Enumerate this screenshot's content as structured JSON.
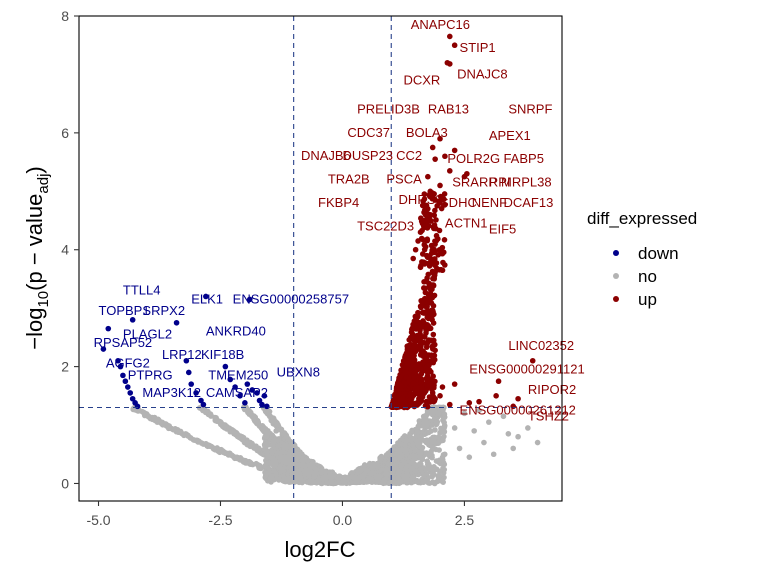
{
  "chart_data": {
    "type": "scatter",
    "xlabel": "log2FC",
    "ylabel_main": "−log",
    "ylabel_sub10": "10",
    "ylabel_mid": "(p − value",
    "ylabel_subadj": "adj",
    "ylabel_close": ")",
    "xlim": [
      -5.4,
      4.5
    ],
    "ylim": [
      -0.3,
      8.0
    ],
    "x_ticks": [
      -5.0,
      -2.5,
      0.0,
      2.5
    ],
    "x_tick_labels": [
      "-5.0",
      "-2.5",
      "0.0",
      "2.5"
    ],
    "y_ticks": [
      0,
      2,
      4,
      6,
      8
    ],
    "y_tick_labels": [
      "0",
      "2",
      "4",
      "6",
      "8"
    ],
    "vlines": [
      -1,
      1
    ],
    "hline": 1.3,
    "grid": false,
    "legend": {
      "title": "diff_expressed",
      "position": "right",
      "entries": [
        {
          "name": "down",
          "color": "#00008b"
        },
        {
          "name": "no",
          "color": "#b3b3b3"
        },
        {
          "name": "up",
          "color": "#8b0000"
        }
      ]
    },
    "colors": {
      "down": "#00008b",
      "no": "#b3b3b3",
      "up": "#8b0000",
      "threshold": "#27408b"
    },
    "points": {
      "up": [
        [
          2.2,
          7.65
        ],
        [
          2.3,
          7.5
        ],
        [
          2.15,
          7.2
        ],
        [
          2.2,
          7.18
        ],
        [
          2.0,
          5.9
        ],
        [
          2.3,
          5.7
        ],
        [
          1.85,
          5.75
        ],
        [
          2.1,
          5.6
        ],
        [
          1.9,
          5.55
        ],
        [
          2.2,
          5.35
        ],
        [
          2.55,
          5.3
        ],
        [
          2.5,
          5.25
        ],
        [
          1.75,
          5.25
        ],
        [
          2.0,
          5.1
        ],
        [
          1.8,
          5.0
        ],
        [
          1.8,
          4.95
        ],
        [
          1.9,
          4.85
        ],
        [
          1.75,
          4.7
        ],
        [
          2.0,
          4.8
        ],
        [
          1.7,
          4.6
        ],
        [
          1.65,
          4.5
        ],
        [
          1.7,
          4.4
        ],
        [
          1.6,
          4.3
        ],
        [
          1.55,
          4.15
        ],
        [
          1.5,
          4.0
        ],
        [
          1.45,
          3.85
        ],
        [
          1.6,
          3.7
        ],
        [
          3.9,
          2.1
        ],
        [
          3.2,
          1.75
        ],
        [
          2.3,
          1.7
        ],
        [
          3.6,
          1.45
        ],
        [
          3.15,
          1.5
        ],
        [
          2.2,
          1.35
        ],
        [
          3.5,
          1.32
        ],
        [
          2.8,
          1.4
        ],
        [
          2.6,
          1.38
        ],
        [
          1.9,
          1.45
        ],
        [
          2.0,
          1.5
        ],
        [
          1.85,
          1.55
        ],
        [
          1.7,
          1.6
        ],
        [
          2.05,
          1.65
        ]
      ],
      "down": [
        [
          -4.8,
          2.65
        ],
        [
          -4.3,
          2.8
        ],
        [
          -3.4,
          2.75
        ],
        [
          -2.8,
          3.2
        ],
        [
          -1.9,
          3.15
        ],
        [
          -4.9,
          2.3
        ],
        [
          -4.6,
          2.1
        ],
        [
          -4.55,
          2.0
        ],
        [
          -4.5,
          1.85
        ],
        [
          -4.45,
          1.75
        ],
        [
          -4.4,
          1.65
        ],
        [
          -4.35,
          1.55
        ],
        [
          -4.3,
          1.45
        ],
        [
          -4.25,
          1.38
        ],
        [
          -4.2,
          1.32
        ],
        [
          -3.2,
          2.1
        ],
        [
          -3.15,
          1.9
        ],
        [
          -3.1,
          1.7
        ],
        [
          -3.0,
          1.55
        ],
        [
          -2.9,
          1.42
        ],
        [
          -2.85,
          1.35
        ],
        [
          -2.4,
          2.0
        ],
        [
          -2.3,
          1.78
        ],
        [
          -2.2,
          1.65
        ],
        [
          -2.1,
          1.5
        ],
        [
          -2.0,
          1.38
        ],
        [
          -1.95,
          1.7
        ],
        [
          -1.85,
          1.6
        ],
        [
          -1.75,
          1.55
        ],
        [
          -1.7,
          1.42
        ],
        [
          -1.65,
          1.35
        ],
        [
          -1.6,
          1.5
        ],
        [
          -1.55,
          1.32
        ]
      ],
      "no_extra": [
        [
          2.5,
          1.2
        ],
        [
          3.0,
          1.05
        ],
        [
          2.7,
          0.9
        ],
        [
          3.4,
          0.85
        ],
        [
          2.9,
          0.7
        ],
        [
          3.6,
          0.8
        ],
        [
          2.4,
          0.6
        ],
        [
          3.1,
          0.5
        ],
        [
          2.3,
          0.95
        ],
        [
          3.3,
          1.15
        ],
        [
          3.8,
          0.95
        ],
        [
          3.5,
          0.6
        ],
        [
          2.6,
          0.45
        ],
        [
          4.0,
          0.7
        ],
        [
          2.8,
          1.25
        ]
      ]
    },
    "annotations": [
      {
        "text": "ANAPC16",
        "x": 1.4,
        "y": 7.85,
        "s": "up"
      },
      {
        "text": "STIP1",
        "x": 2.4,
        "y": 7.45,
        "s": "up"
      },
      {
        "text": "DCXR",
        "x": 1.25,
        "y": 6.9,
        "s": "up"
      },
      {
        "text": "DNAJC8",
        "x": 2.35,
        "y": 7.0,
        "s": "up"
      },
      {
        "text": "PRELID3B",
        "x": 0.3,
        "y": 6.4,
        "s": "up"
      },
      {
        "text": "RAB13",
        "x": 1.75,
        "y": 6.4,
        "s": "up"
      },
      {
        "text": "SNRPF",
        "x": 3.4,
        "y": 6.4,
        "s": "up"
      },
      {
        "text": "CDC37",
        "x": 0.1,
        "y": 6.0,
        "s": "up"
      },
      {
        "text": "BOLA3",
        "x": 1.3,
        "y": 6.0,
        "s": "up"
      },
      {
        "text": "APEX1",
        "x": 3.0,
        "y": 5.95,
        "s": "up"
      },
      {
        "text": "DNAJB6",
        "x": -0.85,
        "y": 5.6,
        "s": "up"
      },
      {
        "text": "DUSP23",
        "x": 0.0,
        "y": 5.6,
        "s": "up"
      },
      {
        "text": "CC2",
        "x": 1.1,
        "y": 5.6,
        "s": "up"
      },
      {
        "text": "POLR2G",
        "x": 2.15,
        "y": 5.55,
        "s": "up"
      },
      {
        "text": "FABP5",
        "x": 3.3,
        "y": 5.55,
        "s": "up"
      },
      {
        "text": "TRA2B",
        "x": -0.3,
        "y": 5.2,
        "s": "up"
      },
      {
        "text": "PSCA",
        "x": 0.9,
        "y": 5.2,
        "s": "up"
      },
      {
        "text": "SRARP",
        "x": 2.25,
        "y": 5.15,
        "s": "up"
      },
      {
        "text": "RPI",
        "x": 3.0,
        "y": 5.15,
        "s": "up"
      },
      {
        "text": "MRPL38",
        "x": 3.25,
        "y": 5.15,
        "s": "up"
      },
      {
        "text": "FKBP4",
        "x": -0.5,
        "y": 4.8,
        "s": "up"
      },
      {
        "text": "DHRS3",
        "x": 1.15,
        "y": 4.85,
        "s": "up"
      },
      {
        "text": "SDHC",
        "x": 2.0,
        "y": 4.8,
        "s": "up"
      },
      {
        "text": "NENF",
        "x": 2.65,
        "y": 4.8,
        "s": "up"
      },
      {
        "text": "DCAF13",
        "x": 3.3,
        "y": 4.8,
        "s": "up"
      },
      {
        "text": "TSC22D3",
        "x": 0.3,
        "y": 4.4,
        "s": "up"
      },
      {
        "text": "ACTN1",
        "x": 2.1,
        "y": 4.45,
        "s": "up"
      },
      {
        "text": "EIF5",
        "x": 3.0,
        "y": 4.35,
        "s": "up"
      },
      {
        "text": "LINC02352",
        "x": 3.4,
        "y": 2.35,
        "s": "up"
      },
      {
        "text": "ENSG00000291121",
        "x": 2.6,
        "y": 1.95,
        "s": "up"
      },
      {
        "text": "RIPOR2",
        "x": 3.8,
        "y": 1.6,
        "s": "up"
      },
      {
        "text": "ENSG00000261212",
        "x": 2.4,
        "y": 1.25,
        "s": "up"
      },
      {
        "text": "TSHZ2",
        "x": 3.8,
        "y": 1.15,
        "s": "up"
      },
      {
        "text": "TTLL4",
        "x": -4.5,
        "y": 3.3,
        "s": "down"
      },
      {
        "text": "ELK1",
        "x": -3.1,
        "y": 3.15,
        "s": "down"
      },
      {
        "text": "ENSG00000258757",
        "x": -2.25,
        "y": 3.15,
        "s": "down"
      },
      {
        "text": "TOPBP1",
        "x": -5.0,
        "y": 2.95,
        "s": "down"
      },
      {
        "text": "SRPX2",
        "x": -4.1,
        "y": 2.95,
        "s": "down"
      },
      {
        "text": "PLAGL2",
        "x": -4.5,
        "y": 2.55,
        "s": "down"
      },
      {
        "text": "ANKRD40",
        "x": -2.8,
        "y": 2.6,
        "s": "down"
      },
      {
        "text": "RPSAP52",
        "x": -5.1,
        "y": 2.4,
        "s": "down"
      },
      {
        "text": "LRP12",
        "x": -3.7,
        "y": 2.2,
        "s": "down"
      },
      {
        "text": "KIF18B",
        "x": -2.9,
        "y": 2.2,
        "s": "down"
      },
      {
        "text": "AGFG2",
        "x": -4.85,
        "y": 2.05,
        "s": "down"
      },
      {
        "text": "PTPRG",
        "x": -4.4,
        "y": 1.85,
        "s": "down"
      },
      {
        "text": "TMEM250",
        "x": -2.75,
        "y": 1.85,
        "s": "down"
      },
      {
        "text": "UBXN8",
        "x": -1.35,
        "y": 1.9,
        "s": "down"
      },
      {
        "text": "MAP3K12",
        "x": -4.1,
        "y": 1.55,
        "s": "down"
      },
      {
        "text": "CAMSAP2",
        "x": -2.8,
        "y": 1.55,
        "s": "down"
      }
    ]
  }
}
